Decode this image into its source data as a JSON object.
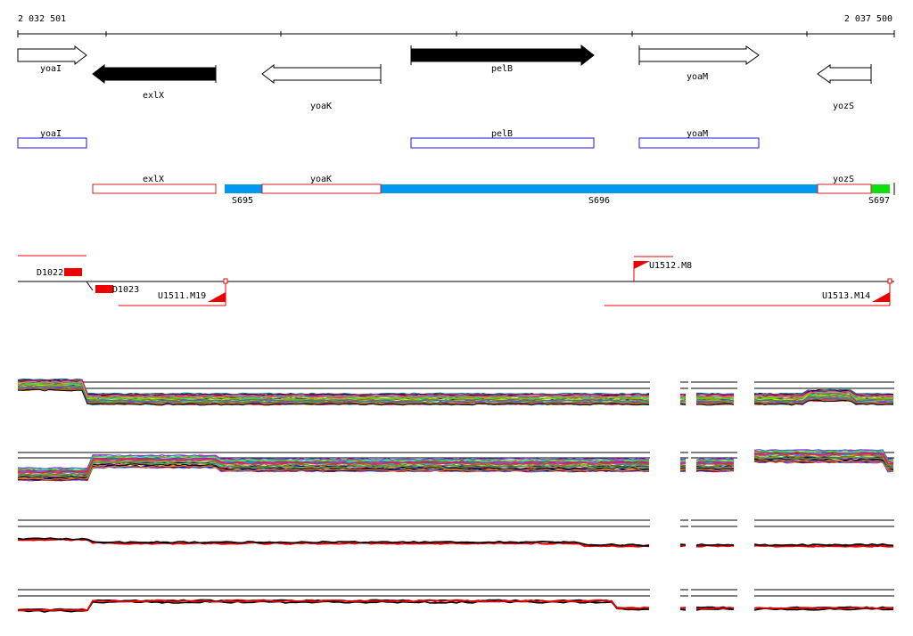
{
  "ruler": {
    "start_label": "2 032 501",
    "end_label": "2 037 500"
  },
  "genes_track": [
    {
      "name": "yoaI",
      "strand": "+",
      "style": "open"
    },
    {
      "name": "exlX",
      "strand": "-",
      "style": "filled"
    },
    {
      "name": "yoaK",
      "strand": "-",
      "style": "open"
    },
    {
      "name": "pelB",
      "strand": "+",
      "style": "filled"
    },
    {
      "name": "yoaM",
      "strand": "+",
      "style": "open"
    },
    {
      "name": "yozS",
      "strand": "-",
      "style": "open"
    }
  ],
  "plus_boxes": [
    "yoaI",
    "pelB",
    "yoaM"
  ],
  "minus_boxes": [
    "exlX",
    "yoaK",
    "yozS"
  ],
  "segments": [
    "S695",
    "S696",
    "S697"
  ],
  "features": {
    "d1022": "D1022",
    "d1023": "D1023",
    "u1511": "U1511.M19",
    "u1512": "U1512.M8",
    "u1513": "U1513.M14"
  },
  "colors": {
    "plus_box": "#1a1acc",
    "minus_box": "#cc2222",
    "segment_blue": "#0099ee",
    "segment_green": "#11dd11",
    "feature_red": "#ee0000"
  }
}
